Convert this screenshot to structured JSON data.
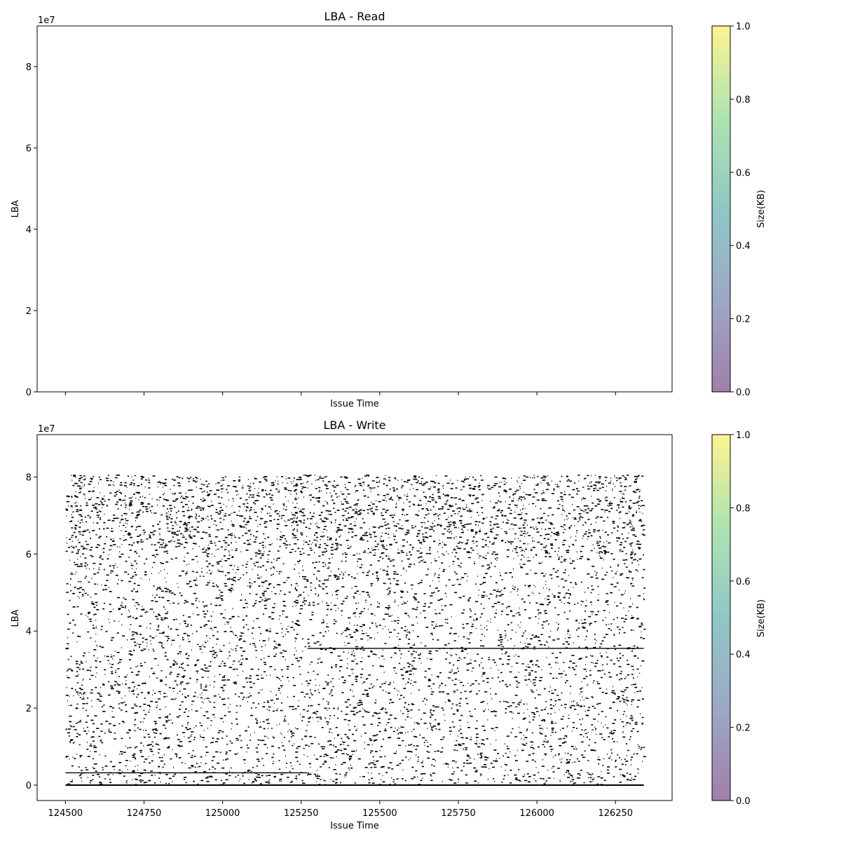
{
  "chart_data": [
    {
      "type": "scatter",
      "title": "LBA - Read",
      "xlabel": "Issue Time",
      "ylabel": "LBA",
      "y_exponent_label": "1e7",
      "xlim": [
        124410,
        126430
      ],
      "ylim": [
        0,
        90000000
      ],
      "yticks": [
        0,
        20000000,
        40000000,
        60000000,
        80000000
      ],
      "ytick_labels": [
        "0",
        "2",
        "4",
        "6",
        "8"
      ],
      "xticks": [
        124500,
        124750,
        125000,
        125250,
        125500,
        125750,
        126000,
        126250
      ],
      "xtick_labels_visible": false,
      "points": [],
      "grid": false,
      "colorbar": {
        "label": "Size(KB)",
        "range": [
          0.0,
          1.0
        ],
        "ticks": [
          "0.0",
          "0.2",
          "0.4",
          "0.6",
          "0.8",
          "1.0"
        ],
        "colors": [
          "#440154",
          "#3b528b",
          "#21908d",
          "#5dc963",
          "#fde725"
        ],
        "alpha": 0.5
      }
    },
    {
      "type": "scatter",
      "title": "LBA - Write",
      "xlabel": "Issue Time",
      "ylabel": "LBA",
      "y_exponent_label": "1e7",
      "xlim": [
        124410,
        126430
      ],
      "ylim": [
        -4000000,
        91000000
      ],
      "yticks": [
        0,
        20000000,
        40000000,
        60000000,
        80000000
      ],
      "ytick_labels": [
        "0",
        "2",
        "4",
        "6",
        "8"
      ],
      "xticks": [
        124500,
        124750,
        125000,
        125250,
        125500,
        125750,
        126000,
        126250
      ],
      "xtick_labels": [
        "124500",
        "124750",
        "125000",
        "125250",
        "125500",
        "125750",
        "126000",
        "126250"
      ],
      "x_range_of_points": [
        124500,
        126340
      ],
      "y_range_of_points": [
        0,
        80500000
      ],
      "point_color": "#000000",
      "horizontal_streaks": [
        {
          "y": 0,
          "x": [
            124500,
            126340
          ]
        },
        {
          "y": 3200000,
          "x": [
            124500,
            125270
          ]
        },
        {
          "y": 35500000,
          "x": [
            125270,
            126340
          ]
        }
      ],
      "grid": false,
      "colorbar": {
        "label": "Size(KB)",
        "range": [
          0.0,
          1.0
        ],
        "ticks": [
          "0.0",
          "0.2",
          "0.4",
          "0.6",
          "0.8",
          "1.0"
        ],
        "colors": [
          "#440154",
          "#3b528b",
          "#21908d",
          "#5dc963",
          "#fde725"
        ],
        "alpha": 0.5
      }
    }
  ]
}
